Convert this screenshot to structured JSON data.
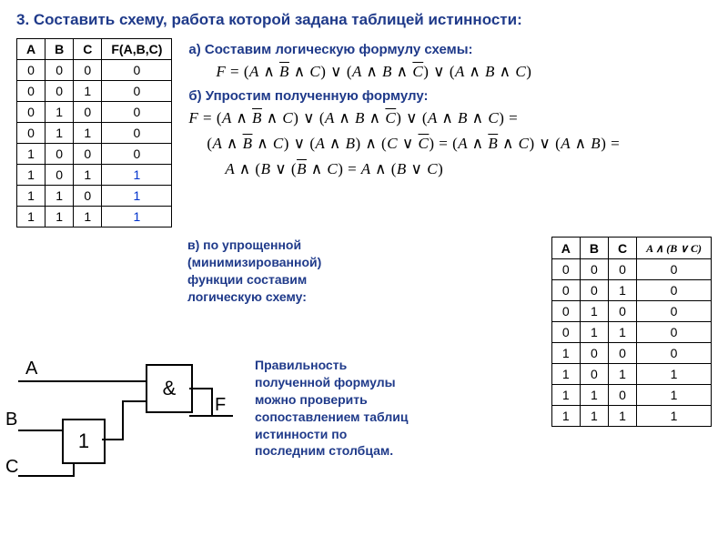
{
  "title_text": "3. Составить схему, работа которой задана таблицей истинности:",
  "section_a": "а) Составим логическую формулу схемы:",
  "section_b": "б) Упростим полученную формулу:",
  "section_c": "в) по упрощенной (минимизированной) функции составим логическую схему:",
  "verify_text": "Правильность полученной формулы можно проверить сопоставлением таблиц истинности по последним столбцам.",
  "truth_table_left": {
    "columns": [
      "A",
      "B",
      "C",
      "F(A,B,C)"
    ],
    "rows": [
      [
        "0",
        "0",
        "0",
        "0"
      ],
      [
        "0",
        "0",
        "1",
        "0"
      ],
      [
        "0",
        "1",
        "0",
        "0"
      ],
      [
        "0",
        "1",
        "1",
        "0"
      ],
      [
        "1",
        "0",
        "0",
        "0"
      ],
      [
        "1",
        "0",
        "1",
        "1"
      ],
      [
        "1",
        "1",
        "0",
        "1"
      ],
      [
        "1",
        "1",
        "1",
        "1"
      ]
    ],
    "highlight_rows": [
      5,
      6,
      7
    ],
    "highlight_col": 3,
    "highlight_color": "#0033cc"
  },
  "truth_table_right": {
    "columns": [
      "A",
      "B",
      "C",
      "A∧(B∨C)"
    ],
    "col_formula_idx": 3,
    "rows": [
      [
        "0",
        "0",
        "0",
        "0"
      ],
      [
        "0",
        "0",
        "1",
        "0"
      ],
      [
        "0",
        "1",
        "0",
        "0"
      ],
      [
        "0",
        "1",
        "1",
        "0"
      ],
      [
        "1",
        "0",
        "0",
        "0"
      ],
      [
        "1",
        "0",
        "1",
        "1"
      ],
      [
        "1",
        "1",
        "0",
        "1"
      ],
      [
        "1",
        "1",
        "1",
        "1"
      ]
    ]
  },
  "formula_a_html": "F <span class='op'>= (</span>A <span class='op'>∧</span> <span class='ov'>B</span> <span class='op'>∧</span> C<span class='op'>) ∨ (</span>A <span class='op'>∧</span> B <span class='op'>∧</span> <span class='ov'>C</span><span class='op'>) ∨ (</span>A <span class='op'>∧</span> B <span class='op'>∧</span> C<span class='op'>)</span>",
  "formula_b1_html": "F <span class='op'>= (</span>A <span class='op'>∧</span> <span class='ov'>B</span> <span class='op'>∧</span> C<span class='op'>) ∨ (</span>A <span class='op'>∧</span> B <span class='op'>∧</span> <span class='ov'>C</span><span class='op'>) ∨ (</span>A <span class='op'>∧</span> B <span class='op'>∧</span> C<span class='op'>) =</span>",
  "formula_b2_html": "<span class='op'>(</span>A <span class='op'>∧</span> <span class='ov'>B</span> <span class='op'>∧</span> C<span class='op'>) ∨ (</span>A <span class='op'>∧</span> B<span class='op'>) ∧ (</span>C <span class='op'>∨</span> <span class='ov'>C</span><span class='op'>) = (</span>A <span class='op'>∧</span> <span class='ov'>B</span> <span class='op'>∧</span> C<span class='op'>) ∨ (</span>A <span class='op'>∧</span> B<span class='op'>) =</span>",
  "formula_b3_html": "A <span class='op'>∧ (</span>B <span class='op'>∨ (</span><span class='ov'>B</span> <span class='op'>∧</span> C<span class='op'>) =</span> A <span class='op'>∧ (</span>B <span class='op'>∨</span> C<span class='op'>)</span>",
  "circuit": {
    "labels": {
      "A": "A",
      "B": "B",
      "C": "C",
      "F": "F"
    },
    "gate_or": "1",
    "gate_and": "&"
  },
  "colors": {
    "title": "#1f3a8a",
    "text": "#000000",
    "highlight": "#0033cc",
    "background": "#ffffff",
    "border": "#000000"
  }
}
